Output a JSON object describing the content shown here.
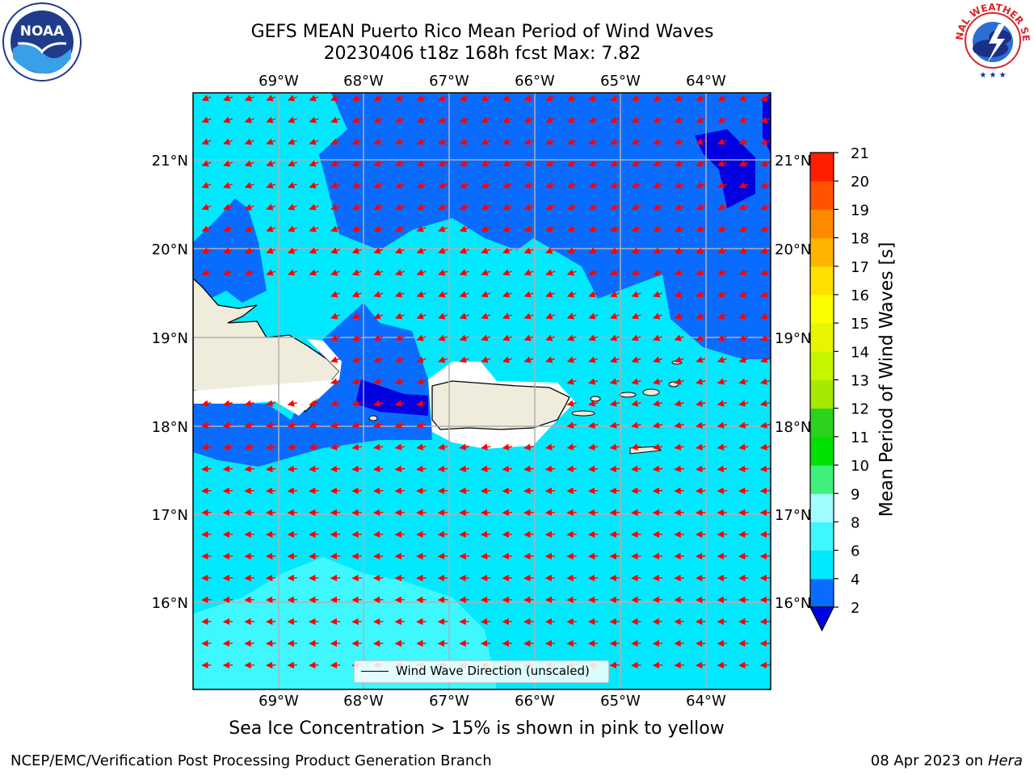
{
  "header": {
    "title_line1": "GEFS MEAN Puerto Rico Mean Period of Wind Waves",
    "title_line2": "20230406 t18z 168h fcst   Max: 7.82"
  },
  "logos": {
    "noaa_text": "NOAA",
    "nws_text": "NATIONAL WEATHER SERVICE"
  },
  "map": {
    "lon_labels": [
      "69°W",
      "68°W",
      "67°W",
      "66°W",
      "65°W",
      "64°W"
    ],
    "lat_labels": [
      "21°N",
      "20°N",
      "19°N",
      "18°N",
      "17°N",
      "16°N"
    ],
    "legend_label": "Wind Wave Direction (unscaled)",
    "arrow_color": "#ff0000",
    "land_color": "#efecdc",
    "grid_color": "#b0b0b0"
  },
  "colorbar": {
    "label": "Mean Period of Wind Waves [s]",
    "ticks": [
      "2",
      "4",
      "6",
      "8",
      "9",
      "10",
      "11",
      "12",
      "13",
      "14",
      "15",
      "16",
      "17",
      "18",
      "19",
      "20",
      "21"
    ],
    "colors": [
      "#0000e0",
      "#0a6cff",
      "#00e9ff",
      "#3ff8ff",
      "#a0fcff",
      "#40f07a",
      "#00e000",
      "#2bd21f",
      "#a6e800",
      "#c6f500",
      "#e6f600",
      "#fcfe00",
      "#ffe000",
      "#ffb400",
      "#ff8a00",
      "#ff5300",
      "#ff1f00",
      "#ff0000"
    ]
  },
  "footer": {
    "note": "Sea Ice Concentration > 15% is shown in pink to yellow",
    "left": "NCEP/EMC/Verification Post Processing Product Generation Branch",
    "right_prefix": "08 Apr 2023 on ",
    "right_machine": "Hera"
  }
}
